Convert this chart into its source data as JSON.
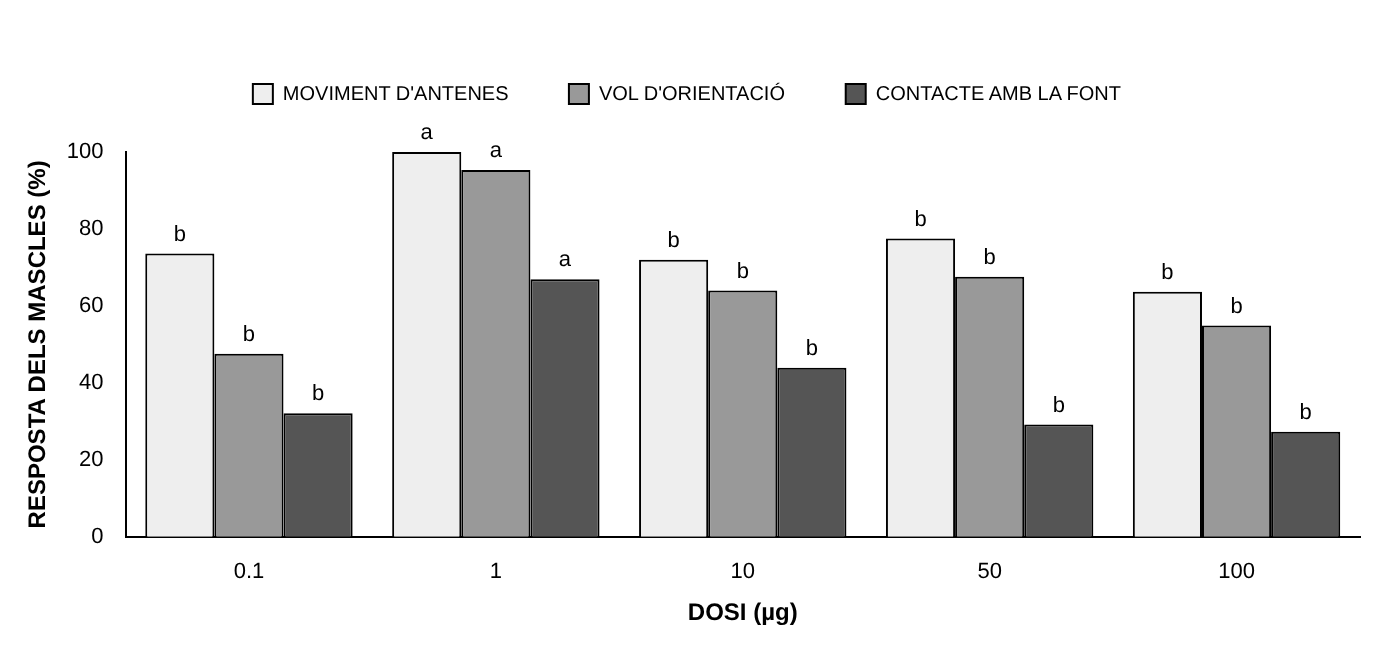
{
  "chart_data": {
    "type": "bar",
    "xlabel": "DOSI (µg)",
    "ylabel": "RESPOSTA DELS MASCLES (%)",
    "categories": [
      "0.1",
      "1",
      "10",
      "50",
      "100"
    ],
    "series": [
      {
        "name": "MOVIMENT D'ANTENES",
        "color": "#eeeeee",
        "values": [
          73.6,
          100,
          72,
          77.5,
          63.7
        ]
      },
      {
        "name": "VOL D'ORIENTACIÓ",
        "color": "#999999",
        "values": [
          47.6,
          95.3,
          64,
          67.6,
          54.9
        ]
      },
      {
        "name": "CONTACTE AMB LA FONT",
        "color": "#555555",
        "values": [
          32.1,
          66.9,
          43.9,
          29.2,
          27.3
        ]
      }
    ],
    "ylim": [
      0,
      100
    ],
    "yticks": [
      0,
      20,
      40,
      60,
      80,
      100
    ],
    "grid": false,
    "legend": "top",
    "annotations": [
      "b",
      "b",
      "b",
      "a",
      "a",
      "a",
      "b",
      "b",
      "b",
      "b",
      "b",
      "b",
      "b",
      "b",
      "b"
    ]
  }
}
